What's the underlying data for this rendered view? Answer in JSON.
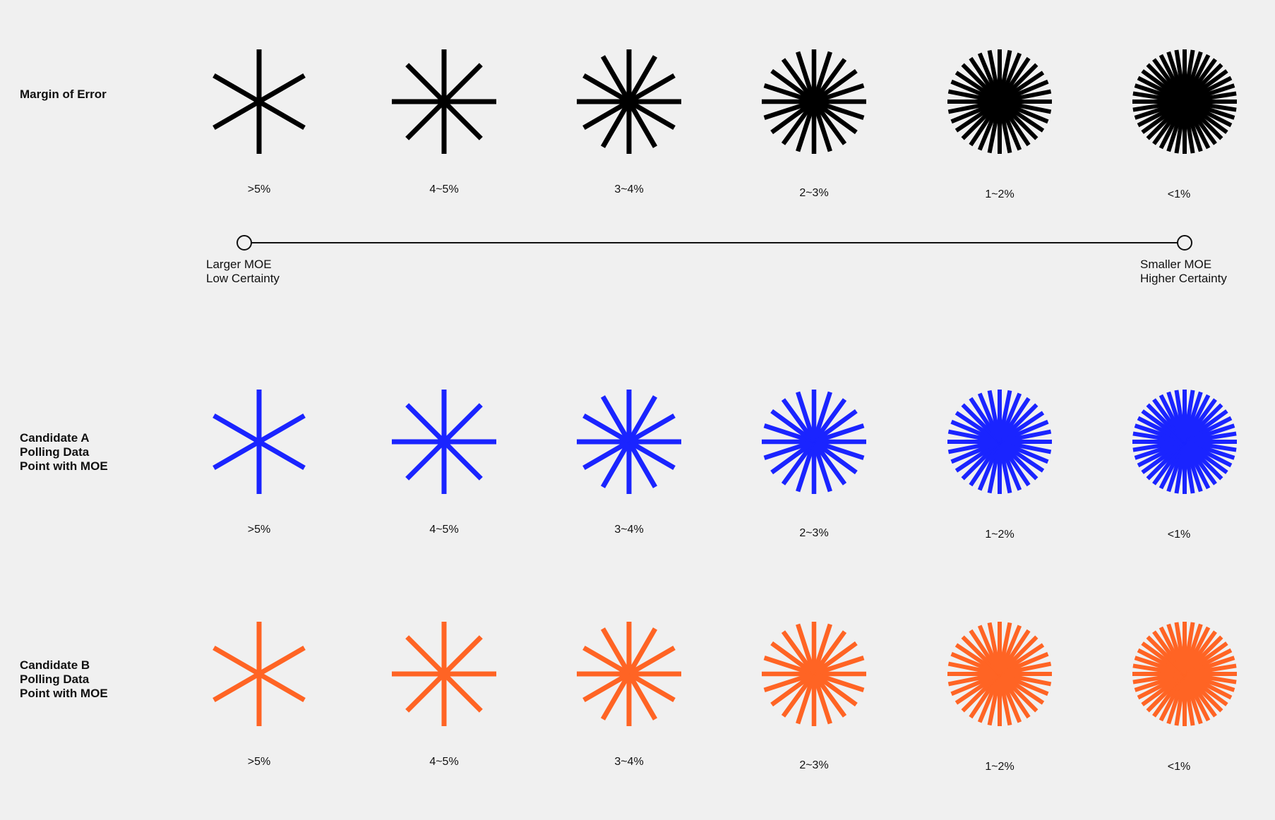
{
  "colors": {
    "background": "#f0f0f0",
    "legend": "#000000",
    "candidate_a": "#1a24ff",
    "candidate_b": "#ff6424",
    "scale_line": "#111111"
  },
  "rows": [
    {
      "key": "legend",
      "label": "Margin of Error",
      "color_key": "legend",
      "symbols": [
        {
          "caption": ">5%",
          "spokes": 6
        },
        {
          "caption": "4~5%",
          "spokes": 8
        },
        {
          "caption": "3~4%",
          "spokes": 12
        },
        {
          "caption": "2~3%",
          "spokes": 20
        },
        {
          "caption": "1~2%",
          "spokes": 32
        },
        {
          "caption": "<1%",
          "spokes": 40
        }
      ]
    },
    {
      "key": "candidate_a",
      "label": "Candidate A\nPolling Data\nPoint with MOE",
      "color_key": "candidate_a",
      "symbols": [
        {
          "caption": ">5%",
          "spokes": 6
        },
        {
          "caption": "4~5%",
          "spokes": 8
        },
        {
          "caption": "3~4%",
          "spokes": 12
        },
        {
          "caption": "2~3%",
          "spokes": 20
        },
        {
          "caption": "1~2%",
          "spokes": 32
        },
        {
          "caption": "<1%",
          "spokes": 40
        }
      ]
    },
    {
      "key": "candidate_b",
      "label": "Candidate B\nPolling Data\nPoint with MOE",
      "color_key": "candidate_b",
      "symbols": [
        {
          "caption": ">5%",
          "spokes": 6
        },
        {
          "caption": "4~5%",
          "spokes": 8
        },
        {
          "caption": "3~4%",
          "spokes": 12
        },
        {
          "caption": "2~3%",
          "spokes": 20
        },
        {
          "caption": "1~2%",
          "spokes": 32
        },
        {
          "caption": "<1%",
          "spokes": 40
        }
      ]
    }
  ],
  "scale": {
    "left_label": "Larger MOE\nLow Certainty",
    "right_label": "Smaller MOE\nHigher Certainty"
  }
}
